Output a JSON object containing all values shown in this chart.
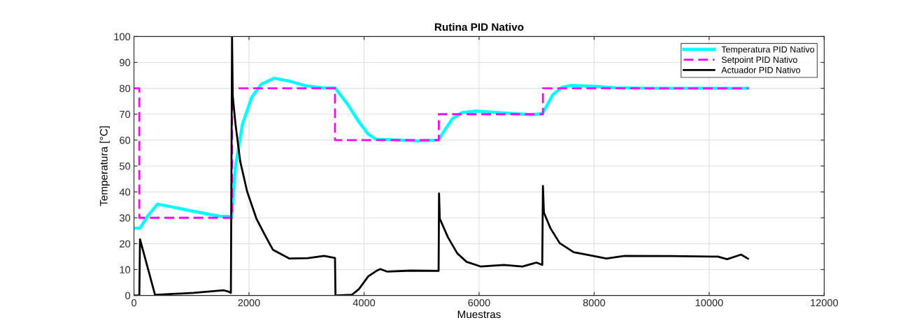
{
  "chart_data": {
    "type": "line",
    "title": "Rutina PID Nativo",
    "xlabel": "Muestras",
    "ylabel": "Temperatura [°C]",
    "xlim": [
      0,
      12000
    ],
    "xticks": [
      0,
      2000,
      4000,
      6000,
      8000,
      10000,
      12000
    ],
    "ylim": [
      0,
      100
    ],
    "yticks": [
      0,
      10,
      20,
      30,
      40,
      50,
      60,
      70,
      80,
      90,
      100
    ],
    "grid": true,
    "legend": "top right",
    "series": [
      {
        "name": "Temperatura PID Nativo",
        "color": "#00ffff",
        "line_style": "solid",
        "x": [
          0,
          105,
          250,
          409,
          700,
          1037,
          1482,
          1697,
          1766,
          1887,
          2049,
          2211,
          2434,
          2697,
          2981,
          3305,
          3495,
          3710,
          3912,
          4074,
          4216,
          4405,
          4932,
          5296,
          5377,
          5539,
          5701,
          5944,
          6430,
          6916,
          7098,
          7159,
          7280,
          7442,
          7605,
          8050,
          8374,
          9000,
          10000,
          10676
        ],
        "values": [
          26,
          26,
          31,
          35.3,
          34,
          32.5,
          30.6,
          30.5,
          50,
          66.2,
          76.6,
          81.5,
          83.9,
          82.8,
          81,
          80.1,
          80.2,
          74,
          67,
          62.3,
          60.3,
          60.2,
          59.7,
          60,
          63,
          68.3,
          70.6,
          71.2,
          70.5,
          69.8,
          70.2,
          72.5,
          77.5,
          80.4,
          81.1,
          80.7,
          80.2,
          80,
          80,
          80
        ]
      },
      {
        "name": "Setpoint PID Nativo",
        "color": "#ff00ff",
        "line_style": "dashed",
        "x": [
          0,
          93,
          93,
          1705,
          1705,
          3495,
          3495,
          5300,
          5300,
          7110,
          7110,
          10676
        ],
        "values": [
          80,
          80,
          30,
          30,
          80,
          80,
          60,
          60,
          70,
          70,
          80,
          80
        ]
      },
      {
        "name": "Actuador PID Nativo",
        "color": "#000000",
        "line_style": "solid",
        "x": [
          0,
          93,
          105,
          369,
          389,
          1037,
          1563,
          1644,
          1685,
          1705,
          1717,
          1766,
          1847,
          1968,
          2130,
          2292,
          2414,
          2697,
          3021,
          3305,
          3495,
          3503,
          3790,
          3912,
          4074,
          4216,
          4283,
          4405,
          4810,
          5296,
          5304,
          5316,
          5458,
          5620,
          5782,
          6025,
          6430,
          6754,
          6997,
          7098,
          7110,
          7127,
          7240,
          7402,
          7645,
          7888,
          8212,
          8530,
          9340,
          10150,
          10312,
          10555,
          10676
        ],
        "values": [
          0,
          0,
          21.7,
          0,
          0.3,
          1,
          2,
          1.5,
          1,
          100,
          77,
          66,
          51.8,
          40.1,
          29.6,
          22.7,
          17.7,
          14.3,
          14.4,
          15.3,
          14.5,
          0,
          0.3,
          2.5,
          7.4,
          9.5,
          10.2,
          9.2,
          9.6,
          9.5,
          39.4,
          29.7,
          22.5,
          16.3,
          13,
          11.2,
          11.8,
          11.2,
          12.7,
          11.8,
          42.3,
          32,
          26,
          20.2,
          16.7,
          15.7,
          14.3,
          15.3,
          15.2,
          15,
          14,
          15.8,
          14.2
        ]
      }
    ]
  }
}
